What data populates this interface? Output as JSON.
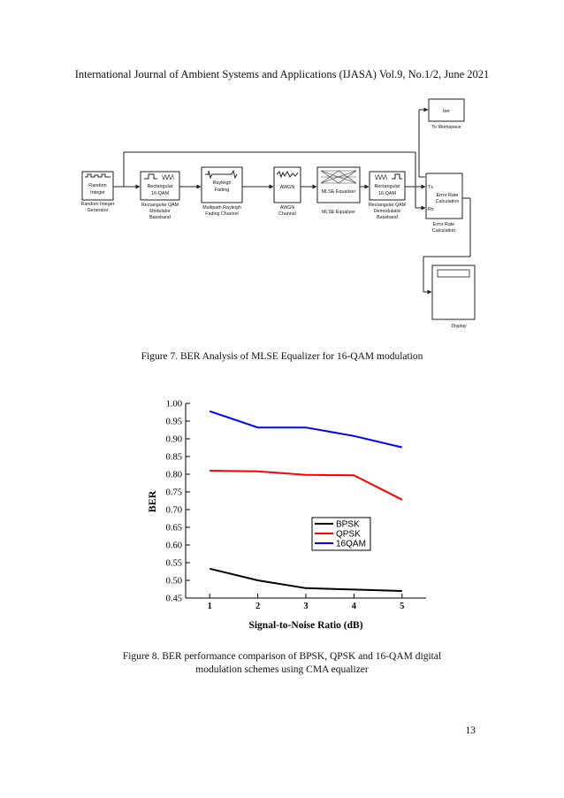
{
  "header": "International Journal of Ambient Systems and Applications (IJASA) Vol.9, No.1/2, June 2021",
  "figure7": {
    "caption": "Figure 7. BER Analysis of MLSE Equalizer for 16-QAM modulation",
    "blocks": {
      "random_integer": {
        "inner": [
          "Random",
          "Integer"
        ],
        "label": [
          "Random Integer",
          "Generator"
        ]
      },
      "qam_mod": {
        "inner": [
          "Rectangular",
          "16-QAM"
        ],
        "label": [
          "Rectangular QAM",
          "Modulator",
          "Baseband"
        ]
      },
      "rayleigh": {
        "inner": [
          "Rayleigh",
          "Fading"
        ],
        "label": [
          "Multipath Rayleigh",
          "Fading Channel"
        ]
      },
      "awgn": {
        "inner": [
          "AWGN"
        ],
        "label": [
          "AWGN",
          "Channel"
        ]
      },
      "mlse": {
        "inner": [
          "MLSE Equalizer"
        ],
        "label": [
          "MLSE Equalizer"
        ]
      },
      "qam_demod": {
        "inner": [
          "Rectangular",
          "16-QAM"
        ],
        "label": [
          "Rectangular QAM",
          "Demodulator",
          "Baseband"
        ]
      },
      "error_rate": {
        "inner": [
          "Error Rate",
          "Calculation"
        ],
        "ports": [
          "Tx",
          "Rx"
        ],
        "label": [
          "Error Rate",
          "Calculation"
        ]
      },
      "to_workspace": {
        "inner": [
          "ber"
        ],
        "label": [
          "To Workspace"
        ]
      },
      "display": {
        "label": [
          "Display"
        ]
      }
    }
  },
  "figure8": {
    "caption": [
      "Figure 8. BER performance comparison of BPSK, QPSK and 16-QAM digital",
      "modulation schemes using CMA equalizer"
    ]
  },
  "chart_data": {
    "type": "line",
    "title": "",
    "xlabel": "Signal-to-Noise Ratio (dB)",
    "ylabel": "BER",
    "x": [
      1,
      2,
      3,
      4,
      5
    ],
    "xlim": [
      0.5,
      5.5
    ],
    "ylim": [
      0.45,
      1.0
    ],
    "xticks": [
      "1",
      "2",
      "3",
      "4",
      "5"
    ],
    "yticks": [
      "0.45",
      "0.50",
      "0.55",
      "0.60",
      "0.65",
      "0.70",
      "0.75",
      "0.80",
      "0.85",
      "0.90",
      "0.95",
      "1.00"
    ],
    "legend_position": "center-right",
    "grid": false,
    "series": [
      {
        "name": "BPSK",
        "color": "#000000",
        "values": [
          0.533,
          0.5,
          0.478,
          0.474,
          0.47
        ]
      },
      {
        "name": "QPSK",
        "color": "#ff0000",
        "values": [
          0.81,
          0.808,
          0.798,
          0.797,
          0.728
        ]
      },
      {
        "name": "16QAM",
        "color": "#0000ff",
        "values": [
          0.978,
          0.932,
          0.932,
          0.908,
          0.876
        ]
      }
    ]
  },
  "page_number": "13"
}
